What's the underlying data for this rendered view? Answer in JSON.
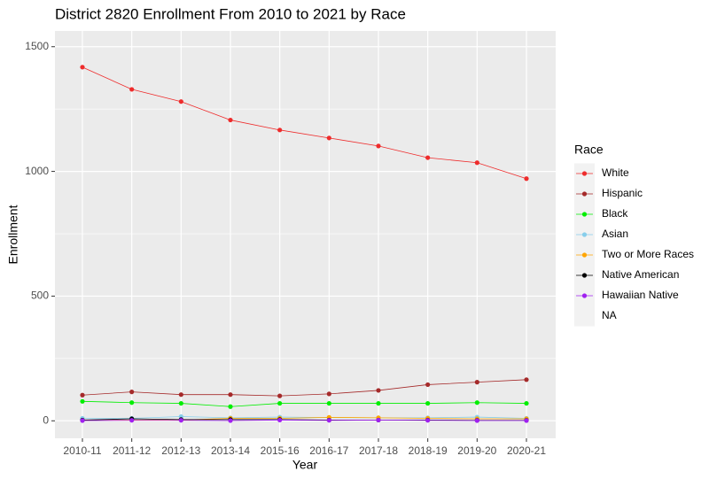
{
  "chart_data": {
    "type": "line",
    "title": "District 2820 Enrollment From 2010 to 2021 by Race",
    "xlabel": "Year",
    "ylabel": "Enrollment",
    "legend_title": "Race",
    "legend": "right",
    "grid": true,
    "categories": [
      "2010-11",
      "2011-12",
      "2012-13",
      "2013-14",
      "2015-16",
      "2016-17",
      "2017-18",
      "2018-19",
      "2019-20",
      "2020-21"
    ],
    "ylim": [
      -70,
      1563
    ],
    "yticks": [
      0,
      500,
      1000,
      1500
    ],
    "series": [
      {
        "name": "White",
        "color": "#ee2c2c",
        "values": [
          1418,
          1329,
          1280,
          1206,
          1166,
          1134,
          1102,
          1055,
          1035,
          971
        ]
      },
      {
        "name": "Hispanic",
        "color": "#a52a2a",
        "values": [
          103,
          116,
          105,
          105,
          100,
          108,
          122,
          145,
          155,
          165
        ]
      },
      {
        "name": "Black",
        "color": "#00ee00",
        "values": [
          78,
          73,
          70,
          57,
          70,
          70,
          70,
          70,
          73,
          70
        ]
      },
      {
        "name": "Asian",
        "color": "#87ceeb",
        "values": [
          10,
          10,
          17,
          12,
          15,
          13,
          12,
          12,
          15,
          10
        ]
      },
      {
        "name": "Two or More Races",
        "color": "#ffa500",
        "values": [
          2,
          3,
          3,
          10,
          10,
          14,
          12,
          10,
          8,
          8
        ]
      },
      {
        "name": "Native American",
        "color": "#000000",
        "values": [
          3,
          8,
          5,
          5,
          5,
          3,
          3,
          3,
          2,
          2
        ]
      },
      {
        "name": "Hawaiian Native",
        "color": "#a020f0",
        "values": [
          1,
          2,
          2,
          1,
          3,
          2,
          3,
          2,
          1,
          1
        ]
      },
      {
        "name": "NA",
        "color": null,
        "values": [
          null,
          null,
          null,
          null,
          null,
          null,
          null,
          null,
          null,
          null
        ]
      }
    ]
  }
}
